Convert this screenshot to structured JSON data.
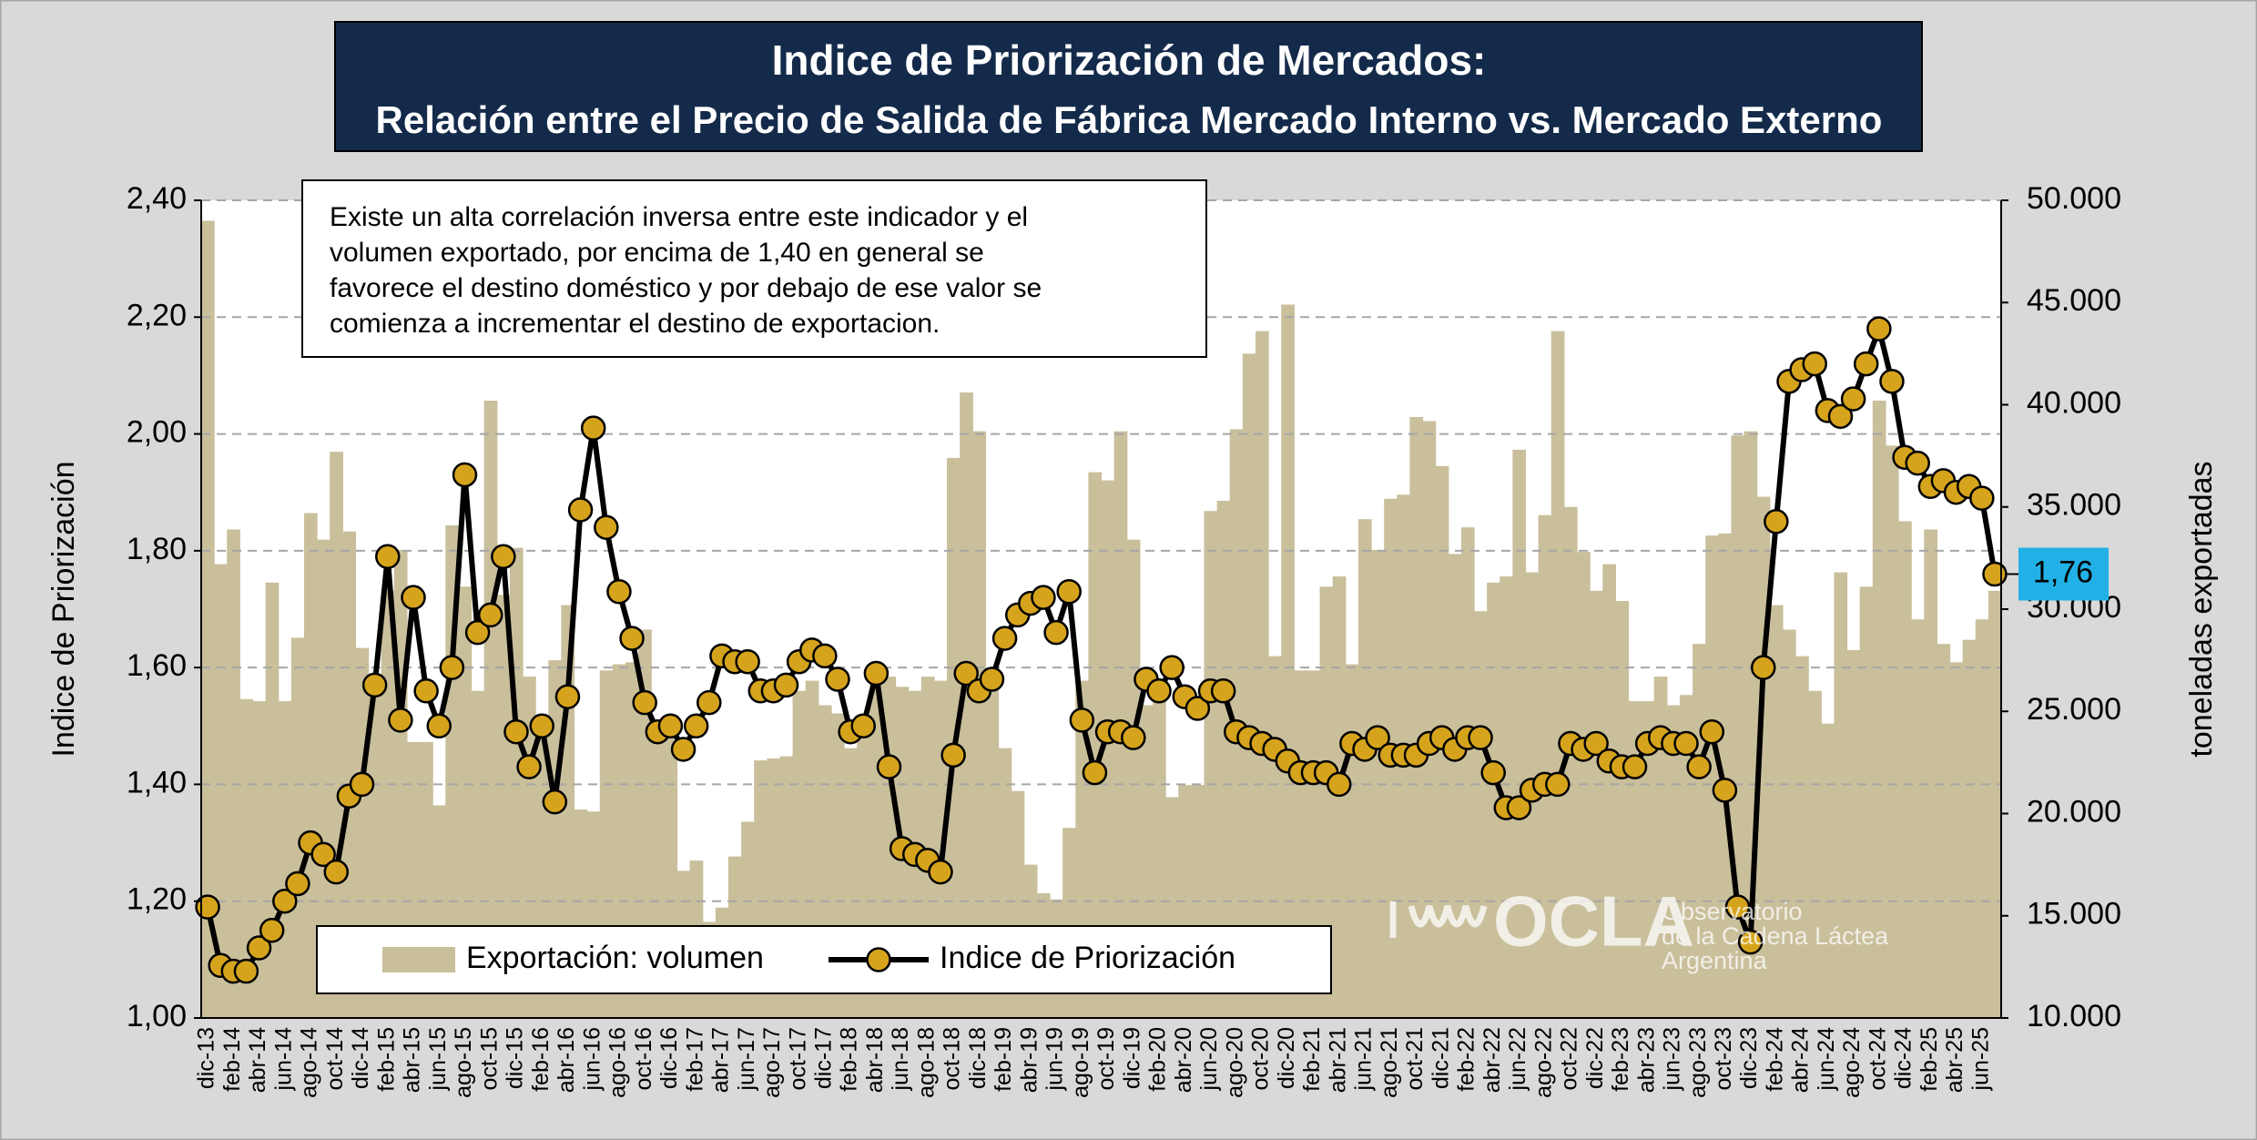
{
  "chart_data": {
    "type": "bar_line",
    "title": "Indice de Priorización de Mercados:",
    "subtitle": "Relación  entre el Precio de Salida de Fábrica Mercado Interno vs. Mercado Externo",
    "annotation": [
      "Existe un alta correlación inversa entre este indicador y el",
      "volumen exportado, por encima de 1,40 en general se",
      "favorece el destino doméstico y por debajo de ese valor se",
      "comienza a incrementar el destino de exportacion."
    ],
    "y_label": "Indice de Priorización",
    "y2_label": "toneladas exportadas",
    "logo": {
      "name": "OCLA",
      "lines": [
        "Observatorio",
        "de la Cadena Láctea",
        "Argentina"
      ]
    },
    "categories": [
      "dic-13",
      null,
      "feb-14",
      null,
      "abr-14",
      null,
      "jun-14",
      null,
      "ago-14",
      null,
      "oct-14",
      null,
      "dic-14",
      null,
      "feb-15",
      null,
      "abr-15",
      null,
      "jun-15",
      null,
      "ago-15",
      null,
      "oct-15",
      null,
      "dic-15",
      null,
      "feb-16",
      null,
      "abr-16",
      null,
      "jun-16",
      null,
      "ago-16",
      null,
      "oct-16",
      null,
      "dic-16",
      null,
      "feb-17",
      null,
      "abr-17",
      null,
      "jun-17",
      null,
      "ago-17",
      null,
      "oct-17",
      null,
      "dic-17",
      null,
      "feb-18",
      null,
      "abr-18",
      null,
      "jun-18",
      null,
      "ago-18",
      null,
      "oct-18",
      null,
      "dic-18",
      null,
      "feb-19",
      null,
      "abr-19",
      null,
      "jun-19",
      null,
      "ago-19",
      null,
      "oct-19",
      null,
      "dic-19",
      null,
      "feb-20",
      null,
      "abr-20",
      null,
      "jun-20",
      null,
      "ago-20",
      null,
      "oct-20",
      null,
      "dic-20",
      null,
      "feb-21",
      null,
      "abr-21",
      null,
      "jun-21",
      null,
      "ago-21",
      null,
      "oct-21",
      null,
      "dic-21",
      null,
      "feb-22",
      null,
      "abr-22",
      null,
      "jun-22",
      null,
      "ago-22",
      null,
      "oct-22",
      null,
      "dic-22",
      null,
      "feb-23",
      null,
      "abr-23",
      null,
      "jun-23",
      null,
      "ago-23",
      null,
      "oct-23",
      null,
      "dic-23",
      null,
      "feb-24",
      null,
      "abr-24",
      null,
      "jun-24",
      null,
      "ago-24",
      null,
      "oct-24",
      null,
      "dic-24",
      null,
      "feb-25",
      null,
      "abr-25",
      null,
      "jun-25",
      null
    ],
    "series": [
      {
        "name": "Exportación: volumen",
        "type": "bar",
        "axis": "y2",
        "color": "#c9bf9b",
        "values": [
          49000,
          32200,
          33900,
          25600,
          25500,
          31300,
          25500,
          28600,
          34700,
          33400,
          37700,
          33800,
          28100,
          26300,
          30900,
          32900,
          23500,
          23500,
          20400,
          34100,
          31100,
          26000,
          40200,
          30700,
          33000,
          26700,
          24600,
          27500,
          30200,
          20200,
          20100,
          27000,
          27300,
          27400,
          29000,
          23500,
          24600,
          17200,
          17700,
          14700,
          15400,
          17900,
          19600,
          22600,
          22700,
          22800,
          26000,
          26500,
          25300,
          24900,
          23200,
          24200,
          26900,
          26700,
          26200,
          26000,
          26700,
          26500,
          37400,
          40600,
          38700,
          26700,
          23200,
          21100,
          17500,
          16100,
          15800,
          19300,
          26500,
          36700,
          36300,
          38700,
          33400,
          25300,
          25600,
          20800,
          21400,
          21400,
          34800,
          35300,
          38800,
          42500,
          43600,
          27700,
          44900,
          27000,
          27000,
          31100,
          31600,
          27300,
          34400,
          32900,
          35400,
          35600,
          39400,
          39200,
          37000,
          32700,
          34000,
          29900,
          31300,
          31600,
          37800,
          31800,
          34600,
          43600,
          35000,
          32800,
          30900,
          32200,
          30400,
          25500,
          25500,
          26700,
          25300,
          25800,
          28300,
          33600,
          33700,
          38500,
          38700,
          35500,
          30200,
          29000,
          27700,
          26000,
          24400,
          31800,
          28000,
          31100,
          40200,
          38000,
          34300,
          29500,
          33900,
          28300,
          27400,
          28500,
          29500,
          30900
        ]
      },
      {
        "name": "Indice de Priorización",
        "type": "line",
        "color": "#000000",
        "marker_color": "#d6a41c",
        "values": [
          1.19,
          1.09,
          1.08,
          1.08,
          1.12,
          1.15,
          1.2,
          1.23,
          1.3,
          1.28,
          1.25,
          1.38,
          1.4,
          1.57,
          1.79,
          1.51,
          1.72,
          1.56,
          1.5,
          1.6,
          1.93,
          1.66,
          1.69,
          1.79,
          1.49,
          1.43,
          1.5,
          1.37,
          1.55,
          1.87,
          2.01,
          1.84,
          1.73,
          1.65,
          1.54,
          1.49,
          1.5,
          1.46,
          1.5,
          1.54,
          1.62,
          1.61,
          1.61,
          1.56,
          1.56,
          1.57,
          1.61,
          1.63,
          1.62,
          1.58,
          1.49,
          1.5,
          1.59,
          1.43,
          1.29,
          1.28,
          1.27,
          1.25,
          1.45,
          1.59,
          1.56,
          1.58,
          1.65,
          1.69,
          1.71,
          1.72,
          1.66,
          1.73,
          1.51,
          1.42,
          1.49,
          1.49,
          1.48,
          1.58,
          1.56,
          1.6,
          1.55,
          1.53,
          1.56,
          1.56,
          1.49,
          1.48,
          1.47,
          1.46,
          1.44,
          1.42,
          1.42,
          1.42,
          1.4,
          1.47,
          1.46,
          1.48,
          1.45,
          1.45,
          1.45,
          1.47,
          1.48,
          1.46,
          1.48,
          1.48,
          1.42,
          1.36,
          1.36,
          1.39,
          1.4,
          1.4,
          1.47,
          1.46,
          1.47,
          1.44,
          1.43,
          1.43,
          1.47,
          1.48,
          1.47,
          1.47,
          1.43,
          1.49,
          1.39,
          1.19,
          1.13,
          1.6,
          1.85,
          2.09,
          2.11,
          2.12,
          2.04,
          2.03,
          2.06,
          2.12,
          2.18,
          2.09,
          1.96,
          1.95,
          1.91,
          1.92,
          1.9,
          1.91,
          1.89,
          1.76
        ]
      }
    ],
    "callout": {
      "value": 1.76,
      "label": "1,76",
      "color": "#22b1e6"
    },
    "ylim": [
      1.0,
      2.4
    ],
    "yticks": [
      {
        "value": 1.0,
        "label": "1,00"
      },
      {
        "value": 1.2,
        "label": "1,20"
      },
      {
        "value": 1.4,
        "label": "1,40"
      },
      {
        "value": 1.6,
        "label": "1,60"
      },
      {
        "value": 1.8,
        "label": "1,80"
      },
      {
        "value": 2.0,
        "label": "2,00"
      },
      {
        "value": 2.2,
        "label": "2,20"
      },
      {
        "value": 2.4,
        "label": "2,40"
      }
    ],
    "y2lim": [
      10000,
      50000
    ],
    "y2ticks": [
      {
        "value": 10000,
        "label": "10.000"
      },
      {
        "value": 15000,
        "label": "15.000"
      },
      {
        "value": 20000,
        "label": "20.000"
      },
      {
        "value": 25000,
        "label": "25.000"
      },
      {
        "value": 30000,
        "label": "30.000"
      },
      {
        "value": 35000,
        "label": "35.000"
      },
      {
        "value": 40000,
        "label": "40.000"
      },
      {
        "value": 45000,
        "label": "45.000"
      },
      {
        "value": 50000,
        "label": "50.000"
      }
    ],
    "grid": true,
    "legend": "bottom"
  }
}
